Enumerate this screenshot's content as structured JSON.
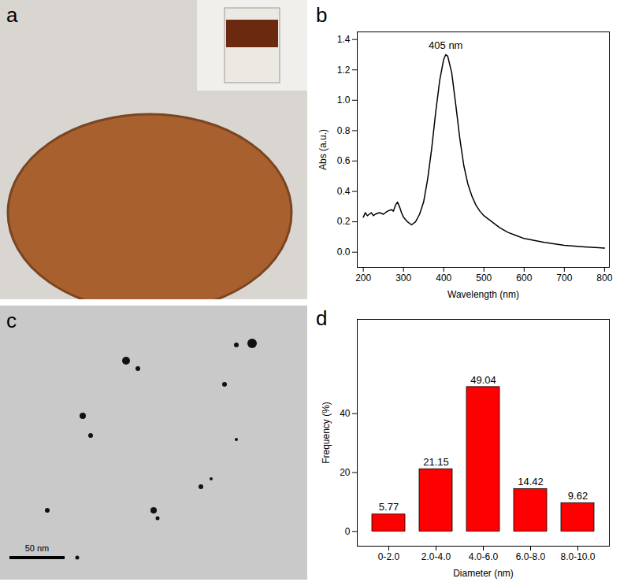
{
  "chart_data": [
    {
      "type": "line",
      "title": "b",
      "x": [
        200,
        205,
        210,
        215,
        220,
        225,
        230,
        240,
        250,
        260,
        270,
        275,
        280,
        285,
        290,
        295,
        300,
        310,
        320,
        330,
        340,
        350,
        360,
        370,
        380,
        390,
        400,
        405,
        410,
        420,
        430,
        440,
        450,
        460,
        470,
        480,
        490,
        500,
        520,
        540,
        560,
        580,
        600,
        650,
        700,
        750,
        800
      ],
      "values": [
        0.23,
        0.26,
        0.24,
        0.25,
        0.26,
        0.24,
        0.25,
        0.26,
        0.25,
        0.27,
        0.28,
        0.27,
        0.31,
        0.33,
        0.3,
        0.26,
        0.23,
        0.2,
        0.18,
        0.2,
        0.25,
        0.33,
        0.48,
        0.68,
        0.92,
        1.13,
        1.27,
        1.3,
        1.29,
        1.18,
        0.97,
        0.75,
        0.57,
        0.45,
        0.37,
        0.31,
        0.27,
        0.24,
        0.2,
        0.16,
        0.13,
        0.11,
        0.09,
        0.065,
        0.045,
        0.035,
        0.027
      ],
      "color": "#000000",
      "xlabel": "Wavelength (nm)",
      "ylabel": "Abs (a.u.)",
      "xlim": [
        185,
        812
      ],
      "xticks": [
        200,
        300,
        400,
        500,
        600,
        700,
        800
      ],
      "ylim": [
        -0.1,
        1.45
      ],
      "yticks": [
        {
          "value": 0,
          "label": "0.0"
        },
        0.2,
        0.4,
        0.6,
        0.8,
        {
          "value": 1,
          "label": "1.0"
        },
        1.2,
        1.4
      ],
      "annotations": [
        {
          "x": 405,
          "y": 1.3,
          "text": "405 nm"
        }
      ]
    },
    {
      "type": "bar",
      "title": "d",
      "categories": [
        "0-2.0",
        "2.0-4.0",
        "4.0-6.0",
        "6.0-8.0",
        "8.0-10.0"
      ],
      "values": [
        5.77,
        21.15,
        49.04,
        14.42,
        9.62
      ],
      "color": "#ff0000",
      "xlabel": "Diameter (nm)",
      "ylabel": "Frequency (%)",
      "ylim": [
        -5,
        72
      ],
      "yticks": [
        0,
        20,
        40
      ],
      "data_labels": true
    }
  ],
  "images": [
    {
      "label": "a"
    },
    {
      "label": "c",
      "scale_bar": "50 nm"
    }
  ]
}
